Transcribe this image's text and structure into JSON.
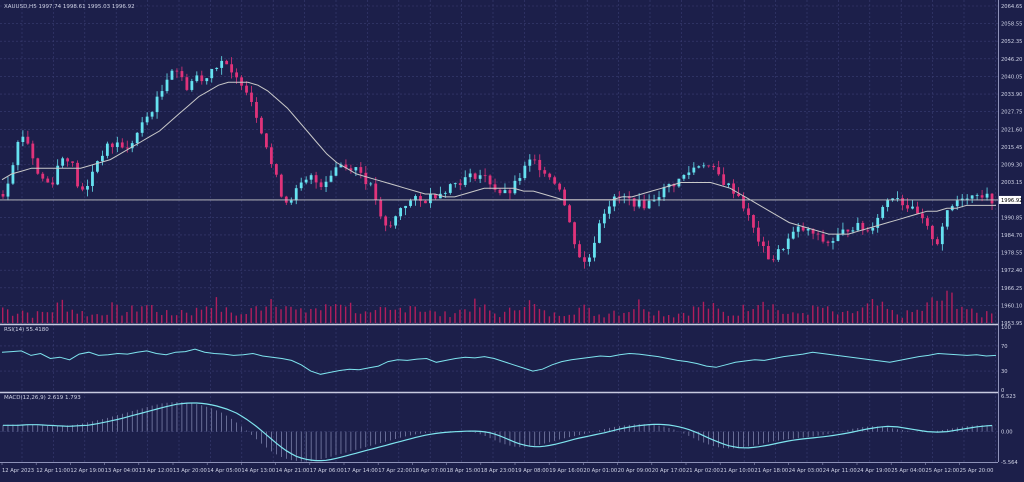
{
  "window": {
    "main_label": "XAUUSD,H5  1997.74 1998.61 1995.03 1996.92",
    "rsi_label": "RSI(14) 55.4180",
    "macd_label": "MACD(12,26,9) 2.619 1.793"
  },
  "colors": {
    "background": "#1c1f4a",
    "grid": "#3a3e73",
    "bull": "#66e2f0",
    "bear": "#e0337a",
    "ma": "#c9c9c9",
    "volume": "#b01e5c",
    "rsi": "#7ee4ee",
    "macd_line": "#7ee4ee",
    "macd_hist": "#9aa0c8",
    "axis_text": "#d0d3e6",
    "separator": "#c8cae0",
    "current_price_line": "#c9c9c9",
    "current_price_box": "#ffffff"
  },
  "price_axis": {
    "ticks": [
      "2064.65",
      "2058.55",
      "2052.35",
      "2046.20",
      "2040.05",
      "2033.90",
      "2027.75",
      "2021.60",
      "2015.45",
      "2009.30",
      "2003.15",
      "1996.92",
      "1990.85",
      "1984.70",
      "1978.55",
      "1972.40",
      "1966.25",
      "1960.10",
      "1953.95"
    ],
    "current_price": "1996.92"
  },
  "rsi_axis": {
    "ticks": [
      "100",
      "70",
      "30",
      "0"
    ]
  },
  "macd_axis": {
    "ticks": [
      "6.523",
      "0.00",
      "-5.564"
    ]
  },
  "time_axis": {
    "labels": [
      "12 Apr 2023",
      "12 Apr 11:00",
      "12 Apr 19:00",
      "13 Apr 04:00",
      "13 Apr 12:00",
      "13 Apr 20:00",
      "14 Apr 05:00",
      "14 Apr 13:00",
      "14 Apr 21:00",
      "17 Apr 06:00",
      "17 Apr 14:00",
      "17 Apr 22:00",
      "18 Apr 07:00",
      "18 Apr 15:00",
      "18 Apr 23:00",
      "19 Apr 08:00",
      "19 Apr 16:00",
      "20 Apr 01:00",
      "20 Apr 09:00",
      "20 Apr 17:00",
      "21 Apr 02:00",
      "21 Apr 10:00",
      "21 Apr 18:00",
      "24 Apr 03:00",
      "24 Apr 11:00",
      "24 Apr 19:00",
      "25 Apr 04:00",
      "25 Apr 12:00",
      "25 Apr 20:00"
    ]
  },
  "chart_data": {
    "type": "candlestick",
    "price_path": [
      1999,
      2006,
      2016,
      2020,
      2015,
      2006,
      2004,
      2002,
      2009,
      2013,
      2010,
      2001,
      1999,
      2007,
      2012,
      2015,
      2016,
      2017,
      2014,
      2018,
      2022,
      2026,
      2030,
      2034,
      2041,
      2044,
      2039,
      2036,
      2041,
      2038,
      2042,
      2044,
      2046,
      2041,
      2039,
      2038,
      2033,
      2026,
      2019,
      2010,
      2003,
      1996,
      1998,
      2001,
      2003,
      2005,
      2002,
      2004,
      2007,
      2010,
      2008,
      2009,
      2007,
      2003,
      2000,
      1990,
      1986,
      1990,
      1995,
      1996,
      1997,
      1996,
      1998,
      1999,
      2000,
      2002,
      2003,
      2004,
      2005,
      2006,
      2005,
      2003,
      2000,
      1999,
      2000,
      2004,
      2008,
      2011,
      2009,
      2007,
      2004,
      2002,
      1993,
      1984,
      1977,
      1974,
      1982,
      1991,
      1995,
      1997,
      1998,
      1997,
      1996,
      1995,
      1996,
      1998,
      2000,
      2002,
      2003,
      2005,
      2007,
      2009,
      2010,
      2008,
      2006,
      2003,
      2001,
      1999,
      1994,
      1988,
      1983,
      1978,
      1976,
      1979,
      1982,
      1985,
      1987,
      1986,
      1985,
      1983,
      1982,
      1983,
      1985,
      1987,
      1988,
      1987,
      1986,
      1990,
      1994,
      1998,
      1999,
      1996,
      1994,
      1992,
      1989,
      1985,
      1982,
      1990,
      1994,
      1997,
      1999,
      1998,
      2000,
      1998,
      1997
    ],
    "ma_path": [
      2004,
      2006,
      2007,
      2008,
      2008,
      2008,
      2008,
      2008,
      2008,
      2009,
      2010,
      2011,
      2013,
      2015,
      2017,
      2019,
      2021,
      2024,
      2027,
      2030,
      2033,
      2035,
      2037,
      2038,
      2038,
      2038,
      2037,
      2035,
      2032,
      2029,
      2025,
      2021,
      2017,
      2013,
      2010,
      2008,
      2006,
      2005,
      2004,
      2003,
      2002,
      2001,
      2000,
      1999,
      1999,
      1998,
      1998,
      1999,
      2000,
      2001,
      2001,
      2001,
      2001,
      2000,
      2000,
      1999,
      1998,
      1997,
      1997,
      1997,
      1997,
      1997,
      1997,
      1998,
      1998,
      1999,
      2000,
      2001,
      2002,
      2003,
      2003,
      2003,
      2003,
      2002,
      2001,
      1999,
      1997,
      1995,
      1993,
      1991,
      1989,
      1988,
      1987,
      1986,
      1985,
      1985,
      1985,
      1986,
      1987,
      1988,
      1989,
      1990,
      1991,
      1992,
      1993,
      1993,
      1994,
      1994,
      1995,
      1995,
      1995,
      1995
    ],
    "rsi_path": [
      60,
      61,
      62,
      55,
      58,
      50,
      52,
      48,
      57,
      60,
      55,
      56,
      58,
      57,
      60,
      62,
      58,
      56,
      60,
      61,
      65,
      60,
      58,
      57,
      55,
      56,
      58,
      54,
      52,
      50,
      47,
      40,
      30,
      25,
      28,
      31,
      33,
      32,
      35,
      38,
      45,
      48,
      47,
      49,
      50,
      44,
      47,
      50,
      52,
      51,
      53,
      50,
      45,
      40,
      35,
      30,
      33,
      40,
      45,
      48,
      50,
      52,
      54,
      53,
      56,
      58,
      57,
      55,
      53,
      50,
      47,
      45,
      42,
      38,
      36,
      40,
      44,
      46,
      48,
      47,
      50,
      53,
      55,
      57,
      60,
      58,
      56,
      54,
      52,
      50,
      48,
      46,
      44,
      47,
      50,
      53,
      55,
      58,
      57,
      56,
      55,
      56,
      54,
      55
    ],
    "macd_path": [
      1.2,
      1.3,
      1.3,
      1.2,
      1.1,
      1.0,
      1.1,
      1.2,
      1.5,
      1.9,
      2.3,
      2.8,
      3.3,
      3.8,
      4.3,
      4.8,
      5.2,
      5.4,
      5.4,
      5.2,
      4.8,
      4.2,
      3.4,
      2.2,
      0.8,
      -0.8,
      -2.4,
      -3.8,
      -4.8,
      -5.3,
      -5.5,
      -5.4,
      -5.0,
      -4.5,
      -4.0,
      -3.5,
      -3.0,
      -2.5,
      -2.0,
      -1.5,
      -1.0,
      -0.6,
      -0.3,
      -0.1,
      0.0,
      0.1,
      0.1,
      -0.1,
      -0.6,
      -1.4,
      -2.2,
      -2.7,
      -2.9,
      -2.7,
      -2.3,
      -1.8,
      -1.3,
      -0.9,
      -0.5,
      -0.1,
      0.4,
      0.8,
      1.1,
      1.3,
      1.4,
      1.3,
      1.0,
      0.5,
      -0.2,
      -1.1,
      -1.9,
      -2.6,
      -3.0,
      -3.1,
      -2.9,
      -2.6,
      -2.2,
      -1.8,
      -1.5,
      -1.3,
      -1.1,
      -0.9,
      -0.6,
      -0.3,
      0.1,
      0.5,
      0.8,
      1.0,
      0.9,
      0.6,
      0.3,
      0.0,
      -0.1,
      0.0,
      0.3,
      0.6,
      0.9,
      1.1,
      1.2,
      1.2
    ],
    "volume_path": [
      6,
      4,
      5,
      3,
      4,
      5,
      8,
      5,
      4,
      3,
      4,
      6,
      4,
      5,
      7,
      6,
      4,
      3,
      5,
      4,
      6,
      9,
      5,
      4,
      3,
      5,
      7,
      10,
      8,
      5,
      4,
      6,
      5,
      7,
      9,
      6,
      4,
      3,
      5,
      4,
      6,
      8,
      5,
      4,
      3,
      4,
      5,
      7,
      6,
      4,
      3,
      5,
      9,
      7,
      4,
      3,
      4,
      5,
      6,
      4,
      3,
      5,
      4,
      6,
      8,
      5,
      4,
      3,
      4,
      5,
      7,
      6,
      4,
      3,
      5,
      8,
      10,
      7,
      4,
      3,
      4,
      5,
      6,
      4,
      3,
      4,
      5,
      7,
      6,
      4,
      3,
      4,
      5,
      8,
      9,
      10,
      7,
      4,
      3,
      5
    ]
  }
}
